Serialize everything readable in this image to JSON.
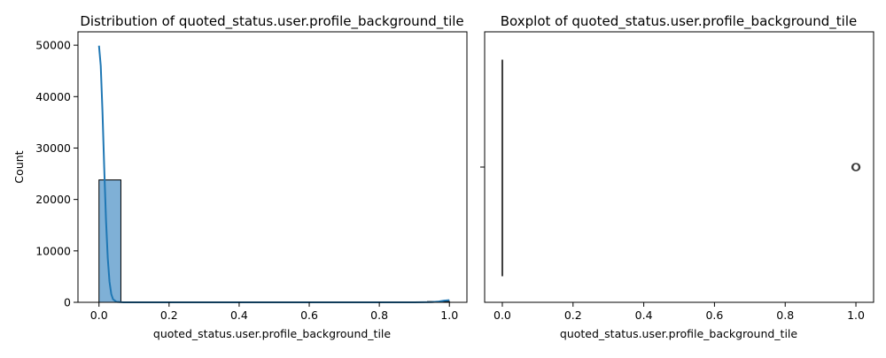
{
  "colors": {
    "bar_fill": "#7fb0d6",
    "line": "#1f77b4",
    "axis": "#000000",
    "box_line": "#3d3d3d"
  },
  "chart_data": [
    {
      "type": "histogram",
      "title": "Distribution of quoted_status.user.profile_background_tile",
      "xlabel": "quoted_status.user.profile_background_tile",
      "ylabel": "Count",
      "xlim": [
        -0.06,
        1.05
      ],
      "ylim": [
        0,
        52600
      ],
      "xticks": [
        0.0,
        0.2,
        0.4,
        0.6,
        0.8,
        1.0
      ],
      "xtick_labels": [
        "0.0",
        "0.2",
        "0.4",
        "0.6",
        "0.8",
        "1.0"
      ],
      "yticks": [
        0,
        10000,
        20000,
        30000,
        40000,
        50000
      ],
      "ytick_labels": [
        "0",
        "10000",
        "20000",
        "30000",
        "40000",
        "50000"
      ],
      "bins": [
        {
          "x0": 0.0,
          "x1": 0.0625,
          "count": 23800
        },
        {
          "x0": 0.0625,
          "x1": 0.125,
          "count": 0
        },
        {
          "x0": 0.125,
          "x1": 0.1875,
          "count": 0
        },
        {
          "x0": 0.1875,
          "x1": 0.25,
          "count": 0
        },
        {
          "x0": 0.25,
          "x1": 0.3125,
          "count": 0
        },
        {
          "x0": 0.3125,
          "x1": 0.375,
          "count": 0
        },
        {
          "x0": 0.375,
          "x1": 0.4375,
          "count": 0
        },
        {
          "x0": 0.4375,
          "x1": 0.5,
          "count": 0
        },
        {
          "x0": 0.5,
          "x1": 0.5625,
          "count": 0
        },
        {
          "x0": 0.5625,
          "x1": 0.625,
          "count": 0
        },
        {
          "x0": 0.625,
          "x1": 0.6875,
          "count": 0
        },
        {
          "x0": 0.6875,
          "x1": 0.75,
          "count": 0
        },
        {
          "x0": 0.75,
          "x1": 0.8125,
          "count": 0
        },
        {
          "x0": 0.8125,
          "x1": 0.875,
          "count": 0
        },
        {
          "x0": 0.875,
          "x1": 0.9375,
          "count": 0
        },
        {
          "x0": 0.9375,
          "x1": 1.0,
          "count": 150
        }
      ],
      "kde": {
        "x": [
          0.0,
          0.005,
          0.01,
          0.015,
          0.02,
          0.025,
          0.03,
          0.035,
          0.04,
          0.05,
          0.07,
          0.1,
          0.3,
          0.5,
          0.7,
          0.9,
          0.95,
          0.97,
          0.985,
          1.0
        ],
        "y": [
          49900,
          46000,
          37000,
          26000,
          16000,
          8600,
          4000,
          1600,
          600,
          80,
          0,
          0,
          0,
          0,
          0,
          0,
          40,
          150,
          320,
          420
        ]
      }
    },
    {
      "type": "boxplot",
      "title": "Boxplot of quoted_status.user.profile_background_tile",
      "xlabel": "quoted_status.user.profile_background_tile",
      "xlim": [
        -0.05,
        1.05
      ],
      "xticks": [
        0.0,
        0.2,
        0.4,
        0.6,
        0.8,
        1.0
      ],
      "xtick_labels": [
        "0.0",
        "0.2",
        "0.4",
        "0.6",
        "0.8",
        "1.0"
      ],
      "stats": {
        "min": 0.0,
        "q1": 0.0,
        "median": 0.0,
        "q3": 0.0,
        "max": 0.0
      },
      "outliers": [
        1.0
      ]
    }
  ]
}
